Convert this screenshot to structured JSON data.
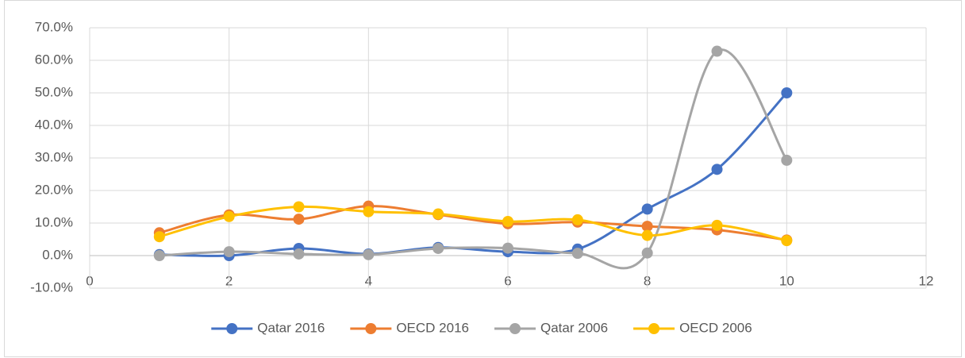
{
  "chart_data": {
    "type": "line",
    "x": [
      1,
      2,
      3,
      4,
      5,
      6,
      7,
      8,
      9,
      10
    ],
    "series": [
      {
        "name": "Qatar 2016",
        "color": "#4472c4",
        "values": [
          0.3,
          0,
          2.2,
          0.5,
          2.5,
          1.2,
          2,
          14.3,
          26.5,
          50
        ]
      },
      {
        "name": "OECD 2016",
        "color": "#ed7d31",
        "values": [
          7,
          12.5,
          11.2,
          15.2,
          12.6,
          9.8,
          10.3,
          9,
          7.9,
          4.8
        ]
      },
      {
        "name": "Qatar 2006",
        "color": "#a5a5a5",
        "values": [
          0,
          1.2,
          0.5,
          0.3,
          2.2,
          2.3,
          0.7,
          0.8,
          62.8,
          29.3
        ]
      },
      {
        "name": "OECD 2006",
        "color": "#ffc000",
        "values": [
          5.8,
          12,
          15,
          13.5,
          12.8,
          10.5,
          11,
          6.2,
          9.3,
          4.6
        ]
      }
    ],
    "xlim": [
      0,
      12
    ],
    "xticks": [
      0,
      2,
      4,
      6,
      8,
      10,
      12
    ],
    "ylim": [
      -10,
      70
    ],
    "yticks": [
      {
        "value": -10,
        "label": "-10.0%"
      },
      {
        "value": 0,
        "label": "0.0%"
      },
      {
        "value": 10,
        "label": "10.0%"
      },
      {
        "value": 20,
        "label": "20.0%"
      },
      {
        "value": 30,
        "label": "30.0%"
      },
      {
        "value": 40,
        "label": "40.0%"
      },
      {
        "value": 50,
        "label": "50.0%"
      },
      {
        "value": 60,
        "label": "60.0%"
      },
      {
        "value": 70,
        "label": "70.0%"
      }
    ],
    "grid": true,
    "smooth": true,
    "legend": "bottom"
  }
}
